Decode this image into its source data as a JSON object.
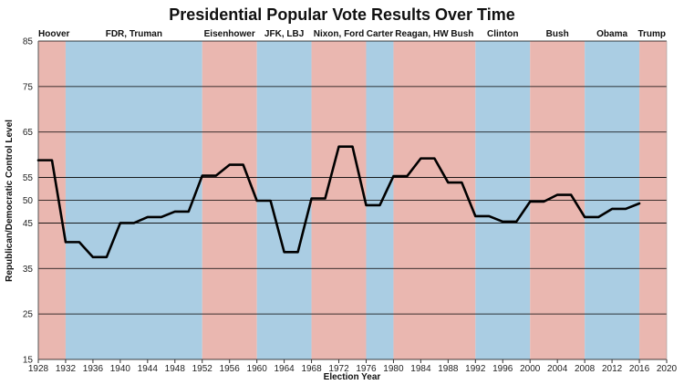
{
  "chart_data": {
    "type": "line",
    "title": "Presidential Popular Vote Results Over Time",
    "xlabel": "Election Year",
    "ylabel": "Republican/Democratic Control Level",
    "xlim": [
      1928,
      2020
    ],
    "ylim": [
      15,
      85
    ],
    "x_ticks": [
      1928,
      1932,
      1936,
      1940,
      1944,
      1948,
      1952,
      1956,
      1960,
      1964,
      1968,
      1972,
      1976,
      1980,
      1984,
      1988,
      1992,
      1996,
      2000,
      2004,
      2008,
      2012,
      2016,
      2020
    ],
    "y_ticks": [
      15,
      25,
      35,
      45,
      50,
      55,
      65,
      75,
      85
    ],
    "grid": "horizontal",
    "colors": {
      "republican": "#eab7b0",
      "democratic": "#aacde3",
      "line": "#000000",
      "grid": "#000000"
    },
    "eras": [
      {
        "label": "Hoover",
        "start": 1928,
        "end": 1932,
        "party": "republican"
      },
      {
        "label": "FDR, Truman",
        "start": 1932,
        "end": 1952,
        "party": "democratic"
      },
      {
        "label": "Eisenhower",
        "start": 1952,
        "end": 1960,
        "party": "republican"
      },
      {
        "label": "JFK, LBJ",
        "start": 1960,
        "end": 1968,
        "party": "democratic"
      },
      {
        "label": "Nixon, Ford",
        "start": 1968,
        "end": 1976,
        "party": "republican"
      },
      {
        "label": "Carter",
        "start": 1976,
        "end": 1980,
        "party": "democratic"
      },
      {
        "label": "Reagan, HW Bush",
        "start": 1980,
        "end": 1992,
        "party": "republican"
      },
      {
        "label": "Clinton",
        "start": 1992,
        "end": 2000,
        "party": "democratic"
      },
      {
        "label": "Bush",
        "start": 2000,
        "end": 2008,
        "party": "republican"
      },
      {
        "label": "Obama",
        "start": 2008,
        "end": 2016,
        "party": "democratic"
      },
      {
        "label": "Trump",
        "start": 2016,
        "end": 2020,
        "party": "republican"
      }
    ],
    "series": [
      {
        "points": [
          [
            1928,
            58.8
          ],
          [
            1930,
            58.8
          ],
          [
            1932,
            40.8
          ],
          [
            1934,
            40.8
          ],
          [
            1936,
            37.5
          ],
          [
            1938,
            37.5
          ],
          [
            1940,
            45.0
          ],
          [
            1942,
            45.0
          ],
          [
            1944,
            46.3
          ],
          [
            1946,
            46.3
          ],
          [
            1948,
            47.5
          ],
          [
            1950,
            47.5
          ],
          [
            1952,
            55.4
          ],
          [
            1954,
            55.4
          ],
          [
            1956,
            57.8
          ],
          [
            1958,
            57.8
          ],
          [
            1960,
            49.9
          ],
          [
            1962,
            49.9
          ],
          [
            1964,
            38.6
          ],
          [
            1966,
            38.6
          ],
          [
            1968,
            50.4
          ],
          [
            1970,
            50.4
          ],
          [
            1972,
            61.8
          ],
          [
            1974,
            61.8
          ],
          [
            1976,
            48.9
          ],
          [
            1978,
            48.9
          ],
          [
            1980,
            55.3
          ],
          [
            1982,
            55.3
          ],
          [
            1984,
            59.2
          ],
          [
            1986,
            59.2
          ],
          [
            1988,
            53.9
          ],
          [
            1990,
            53.9
          ],
          [
            1992,
            46.5
          ],
          [
            1994,
            46.5
          ],
          [
            1996,
            45.3
          ],
          [
            1998,
            45.3
          ],
          [
            2000,
            49.7
          ],
          [
            2002,
            49.7
          ],
          [
            2004,
            51.2
          ],
          [
            2006,
            51.2
          ],
          [
            2008,
            46.3
          ],
          [
            2010,
            46.3
          ],
          [
            2012,
            48.1
          ],
          [
            2014,
            48.1
          ],
          [
            2016,
            49.3
          ]
        ]
      }
    ]
  }
}
